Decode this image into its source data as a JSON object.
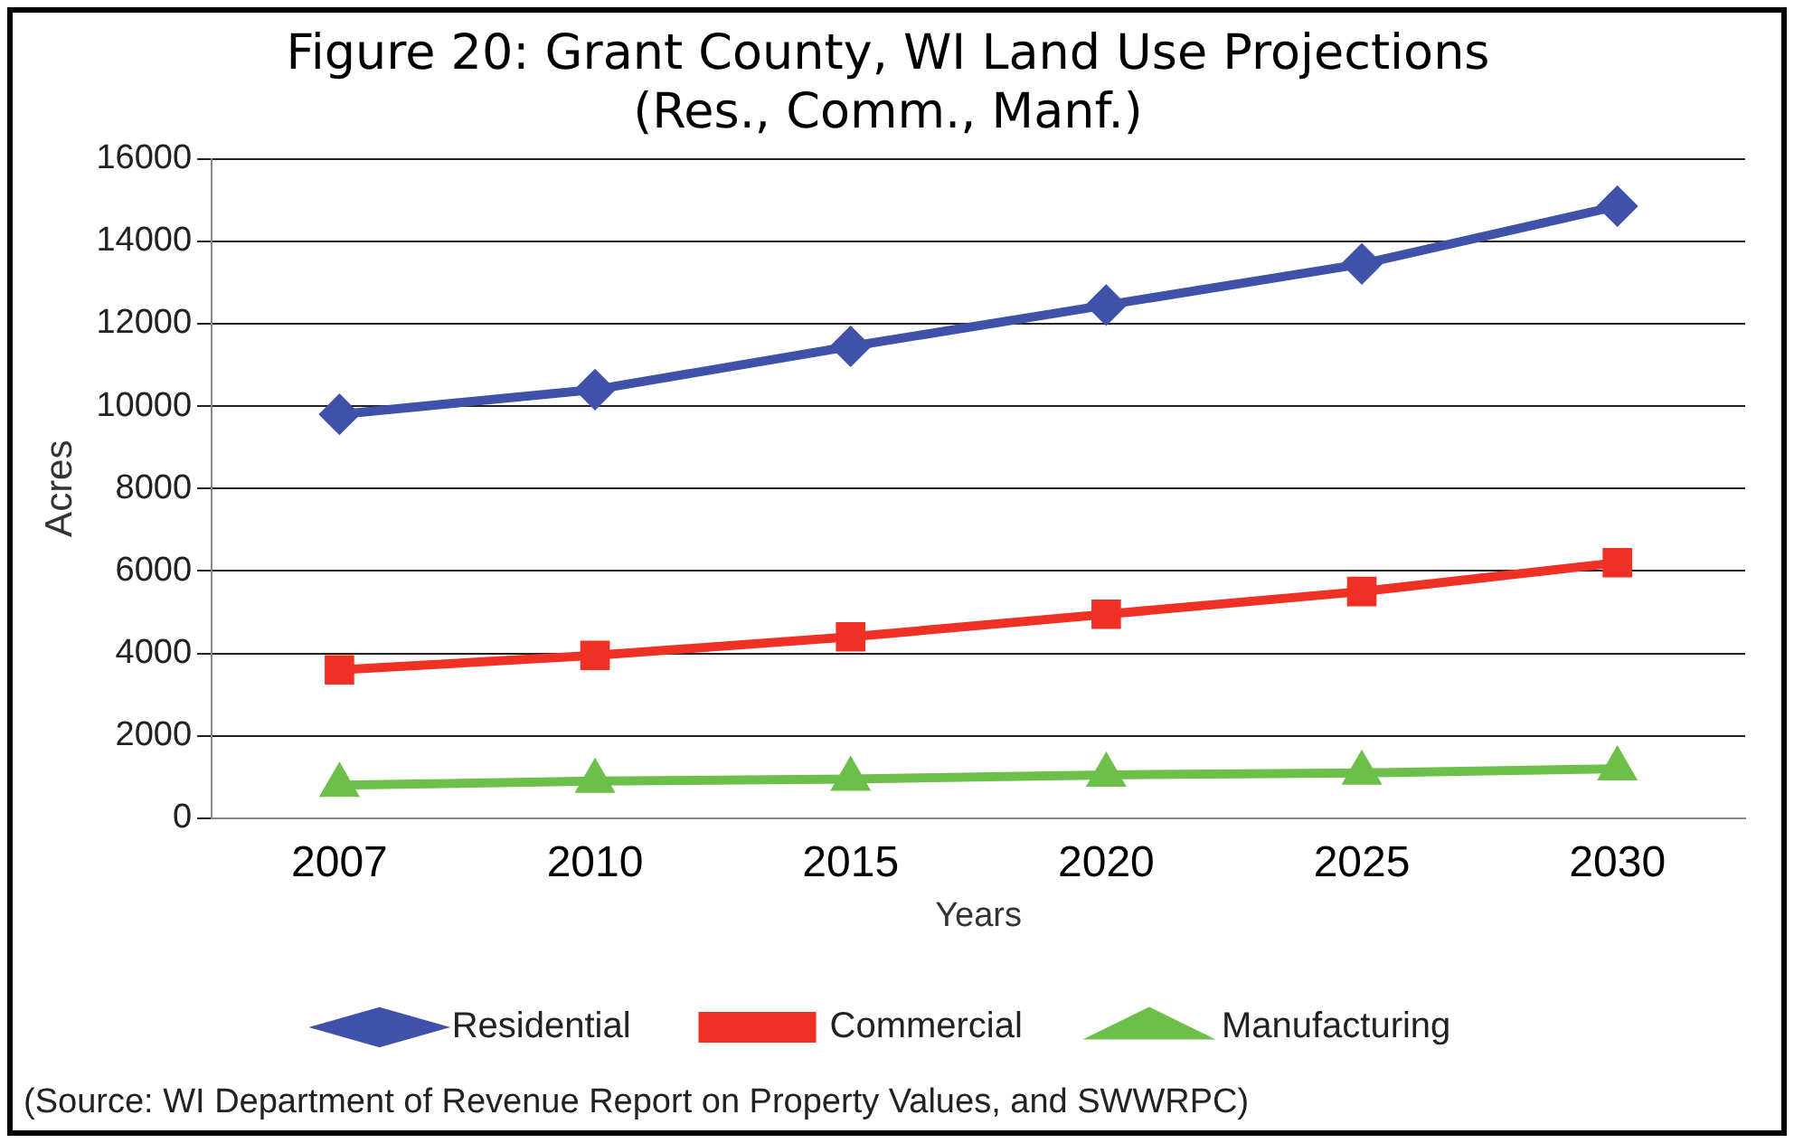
{
  "chart_data": {
    "type": "line",
    "title": "Figure 20: Grant County, WI Land Use Projections\n(Res., Comm., Manf.)",
    "xlabel": "Years",
    "ylabel": "Acres",
    "categories": [
      "2007",
      "2010",
      "2015",
      "2020",
      "2025",
      "2030"
    ],
    "series": [
      {
        "name": "Residential",
        "color": "#3f51a8",
        "marker": "diamond",
        "values": [
          9800,
          10400,
          11450,
          12450,
          13450,
          14850
        ]
      },
      {
        "name": "Commercial",
        "color": "#ee3124",
        "marker": "square",
        "values": [
          3600,
          3950,
          4400,
          4950,
          5500,
          6200
        ]
      },
      {
        "name": "Manufacturing",
        "color": "#6cc04a",
        "marker": "triangle",
        "values": [
          800,
          900,
          950,
          1050,
          1100,
          1200
        ]
      }
    ],
    "ylim": [
      0,
      16000
    ],
    "yticks": [
      0,
      2000,
      4000,
      6000,
      8000,
      10000,
      12000,
      14000,
      16000
    ],
    "grid": "y",
    "legend": "bottom",
    "line_style": "solid",
    "annotations": [
      "(Source: WI Department of Revenue Report on Property Values, and SWWRPC)"
    ]
  }
}
